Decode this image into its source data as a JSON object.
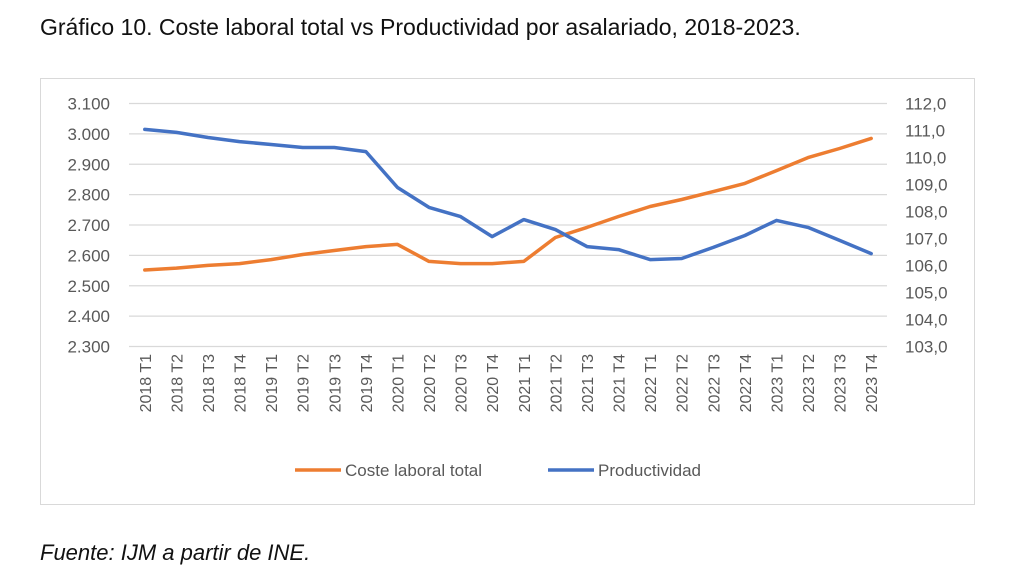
{
  "title": "Gráfico 10. Coste laboral total vs Productividad por asalariado, 2018-2023.",
  "source": "Fuente: IJM a partir de INE.",
  "chart_data": {
    "type": "line",
    "grid": true,
    "legend_position": "bottom",
    "categories": [
      "2018 T1",
      "2018 T2",
      "2018 T3",
      "2018 T4",
      "2019 T1",
      "2019 T2",
      "2019 T3",
      "2019 T4",
      "2020 T1",
      "2020 T2",
      "2020 T3",
      "2020 T4",
      "2021 T1",
      "2021 T2",
      "2021 T3",
      "2021 T4",
      "2022 T1",
      "2022 T2",
      "2022 T3",
      "2022 T4",
      "2023 T1",
      "2023 T2",
      "2023 T3",
      "2023 T4"
    ],
    "y_left": {
      "range": [
        2300,
        3100
      ],
      "ticks": [
        "2.300",
        "2.400",
        "2.500",
        "2.600",
        "2.700",
        "2.800",
        "2.900",
        "3.000",
        "3.100"
      ]
    },
    "y_right": {
      "range": [
        103,
        112
      ],
      "ticks": [
        "103,0",
        "104,0",
        "105,0",
        "106,0",
        "107,0",
        "108,0",
        "109,0",
        "110,0",
        "111,0",
        "112,0"
      ]
    },
    "series": [
      {
        "name": "Coste laboral total",
        "axis": "left",
        "color": "#ED7D31",
        "values": [
          2552,
          2558,
          2567,
          2573,
          2586,
          2603,
          2616,
          2629,
          2636,
          2580,
          2573,
          2573,
          2580,
          2659,
          2692,
          2728,
          2761,
          2784,
          2810,
          2837,
          2879,
          2922,
          2952,
          2985
        ]
      },
      {
        "name": "Productividad",
        "axis": "right",
        "color": "#4472C4",
        "values": [
          111.04,
          110.93,
          110.74,
          110.59,
          110.48,
          110.37,
          110.37,
          110.22,
          108.89,
          108.15,
          107.81,
          107.07,
          107.7,
          107.33,
          106.7,
          106.59,
          106.22,
          106.26,
          106.67,
          107.11,
          107.67,
          107.41,
          106.93,
          106.44
        ]
      }
    ]
  }
}
